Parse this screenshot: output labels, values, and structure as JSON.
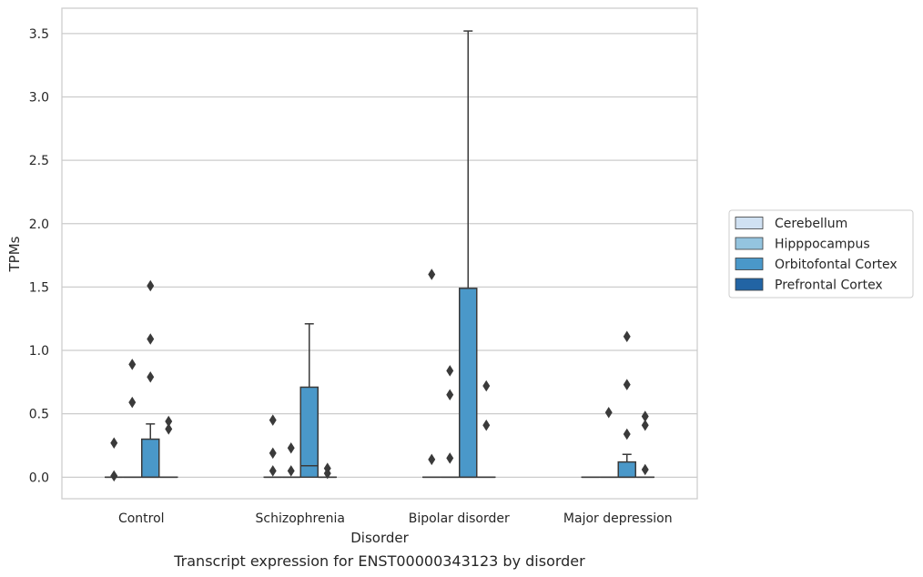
{
  "chart_data": {
    "type": "box",
    "xlabel": "Disorder",
    "ylabel": "TPMs",
    "caption": "Transcript expression for ENST00000343123 by disorder",
    "ylim": [
      -0.17,
      3.7
    ],
    "yticks": [
      0.0,
      0.5,
      1.0,
      1.5,
      2.0,
      2.5,
      3.0,
      3.5
    ],
    "ytick_labels": [
      "0.0",
      "0.5",
      "1.0",
      "1.5",
      "2.0",
      "2.5",
      "3.0",
      "3.5"
    ],
    "grid": "horizontal",
    "legend_position": "right",
    "categories": [
      "Control",
      "Schizophrenia",
      "Bipolar disorder",
      "Major depression"
    ],
    "series": [
      {
        "name": "Cerebellum",
        "color": "#d0e1f2",
        "boxes": [
          {
            "min": 0.0,
            "q1": 0.0,
            "median": 0.0,
            "q3": 0.0,
            "max": 0.0,
            "outliers": [
              0.27,
              0.01
            ]
          },
          {
            "min": 0.0,
            "q1": 0.0,
            "median": 0.0,
            "q3": 0.0,
            "max": 0.0,
            "outliers": [
              0.45,
              0.19,
              0.05
            ]
          },
          {
            "min": 0.0,
            "q1": 0.0,
            "median": 0.0,
            "q3": 0.0,
            "max": 0.0,
            "outliers": [
              1.6,
              0.14
            ]
          },
          {
            "min": 0.0,
            "q1": 0.0,
            "median": 0.0,
            "q3": 0.0,
            "max": 0.0,
            "outliers": []
          }
        ]
      },
      {
        "name": "Hipppocampus",
        "color": "#94c4df",
        "boxes": [
          {
            "min": 0.0,
            "q1": 0.0,
            "median": 0.0,
            "q3": 0.0,
            "max": 0.0,
            "outliers": [
              0.89,
              0.59
            ]
          },
          {
            "min": 0.0,
            "q1": 0.0,
            "median": 0.0,
            "q3": 0.0,
            "max": 0.0,
            "outliers": [
              0.23,
              0.05
            ]
          },
          {
            "min": 0.0,
            "q1": 0.0,
            "median": 0.0,
            "q3": 0.0,
            "max": 0.0,
            "outliers": [
              0.84,
              0.65,
              0.15
            ]
          },
          {
            "min": 0.0,
            "q1": 0.0,
            "median": 0.0,
            "q3": 0.0,
            "max": 0.0,
            "outliers": [
              0.51
            ]
          }
        ]
      },
      {
        "name": "Orbitofontal Cortex",
        "color": "#4a98c9",
        "boxes": [
          {
            "min": 0.0,
            "q1": 0.0,
            "median": 0.0,
            "q3": 0.3,
            "max": 0.42,
            "outliers": [
              1.51,
              1.09,
              0.79
            ]
          },
          {
            "min": 0.0,
            "q1": 0.0,
            "median": 0.09,
            "q3": 0.71,
            "max": 1.21,
            "outliers": []
          },
          {
            "min": 0.0,
            "q1": 0.0,
            "median": 0.0,
            "q3": 1.49,
            "max": 3.52,
            "outliers": []
          },
          {
            "min": 0.0,
            "q1": 0.0,
            "median": 0.0,
            "q3": 0.12,
            "max": 0.18,
            "outliers": [
              1.11,
              0.73,
              0.34
            ]
          }
        ]
      },
      {
        "name": "Prefrontal Cortex",
        "color": "#2264a4",
        "boxes": [
          {
            "min": 0.0,
            "q1": 0.0,
            "median": 0.0,
            "q3": 0.0,
            "max": 0.0,
            "outliers": [
              0.44,
              0.38
            ]
          },
          {
            "min": 0.0,
            "q1": 0.0,
            "median": 0.0,
            "q3": 0.0,
            "max": 0.0,
            "outliers": [
              0.07,
              0.03
            ]
          },
          {
            "min": 0.0,
            "q1": 0.0,
            "median": 0.0,
            "q3": 0.0,
            "max": 0.0,
            "outliers": [
              0.72,
              0.41
            ]
          },
          {
            "min": 0.0,
            "q1": 0.0,
            "median": 0.0,
            "q3": 0.0,
            "max": 0.0,
            "outliers": [
              0.48,
              0.41,
              0.06
            ]
          }
        ]
      }
    ]
  }
}
